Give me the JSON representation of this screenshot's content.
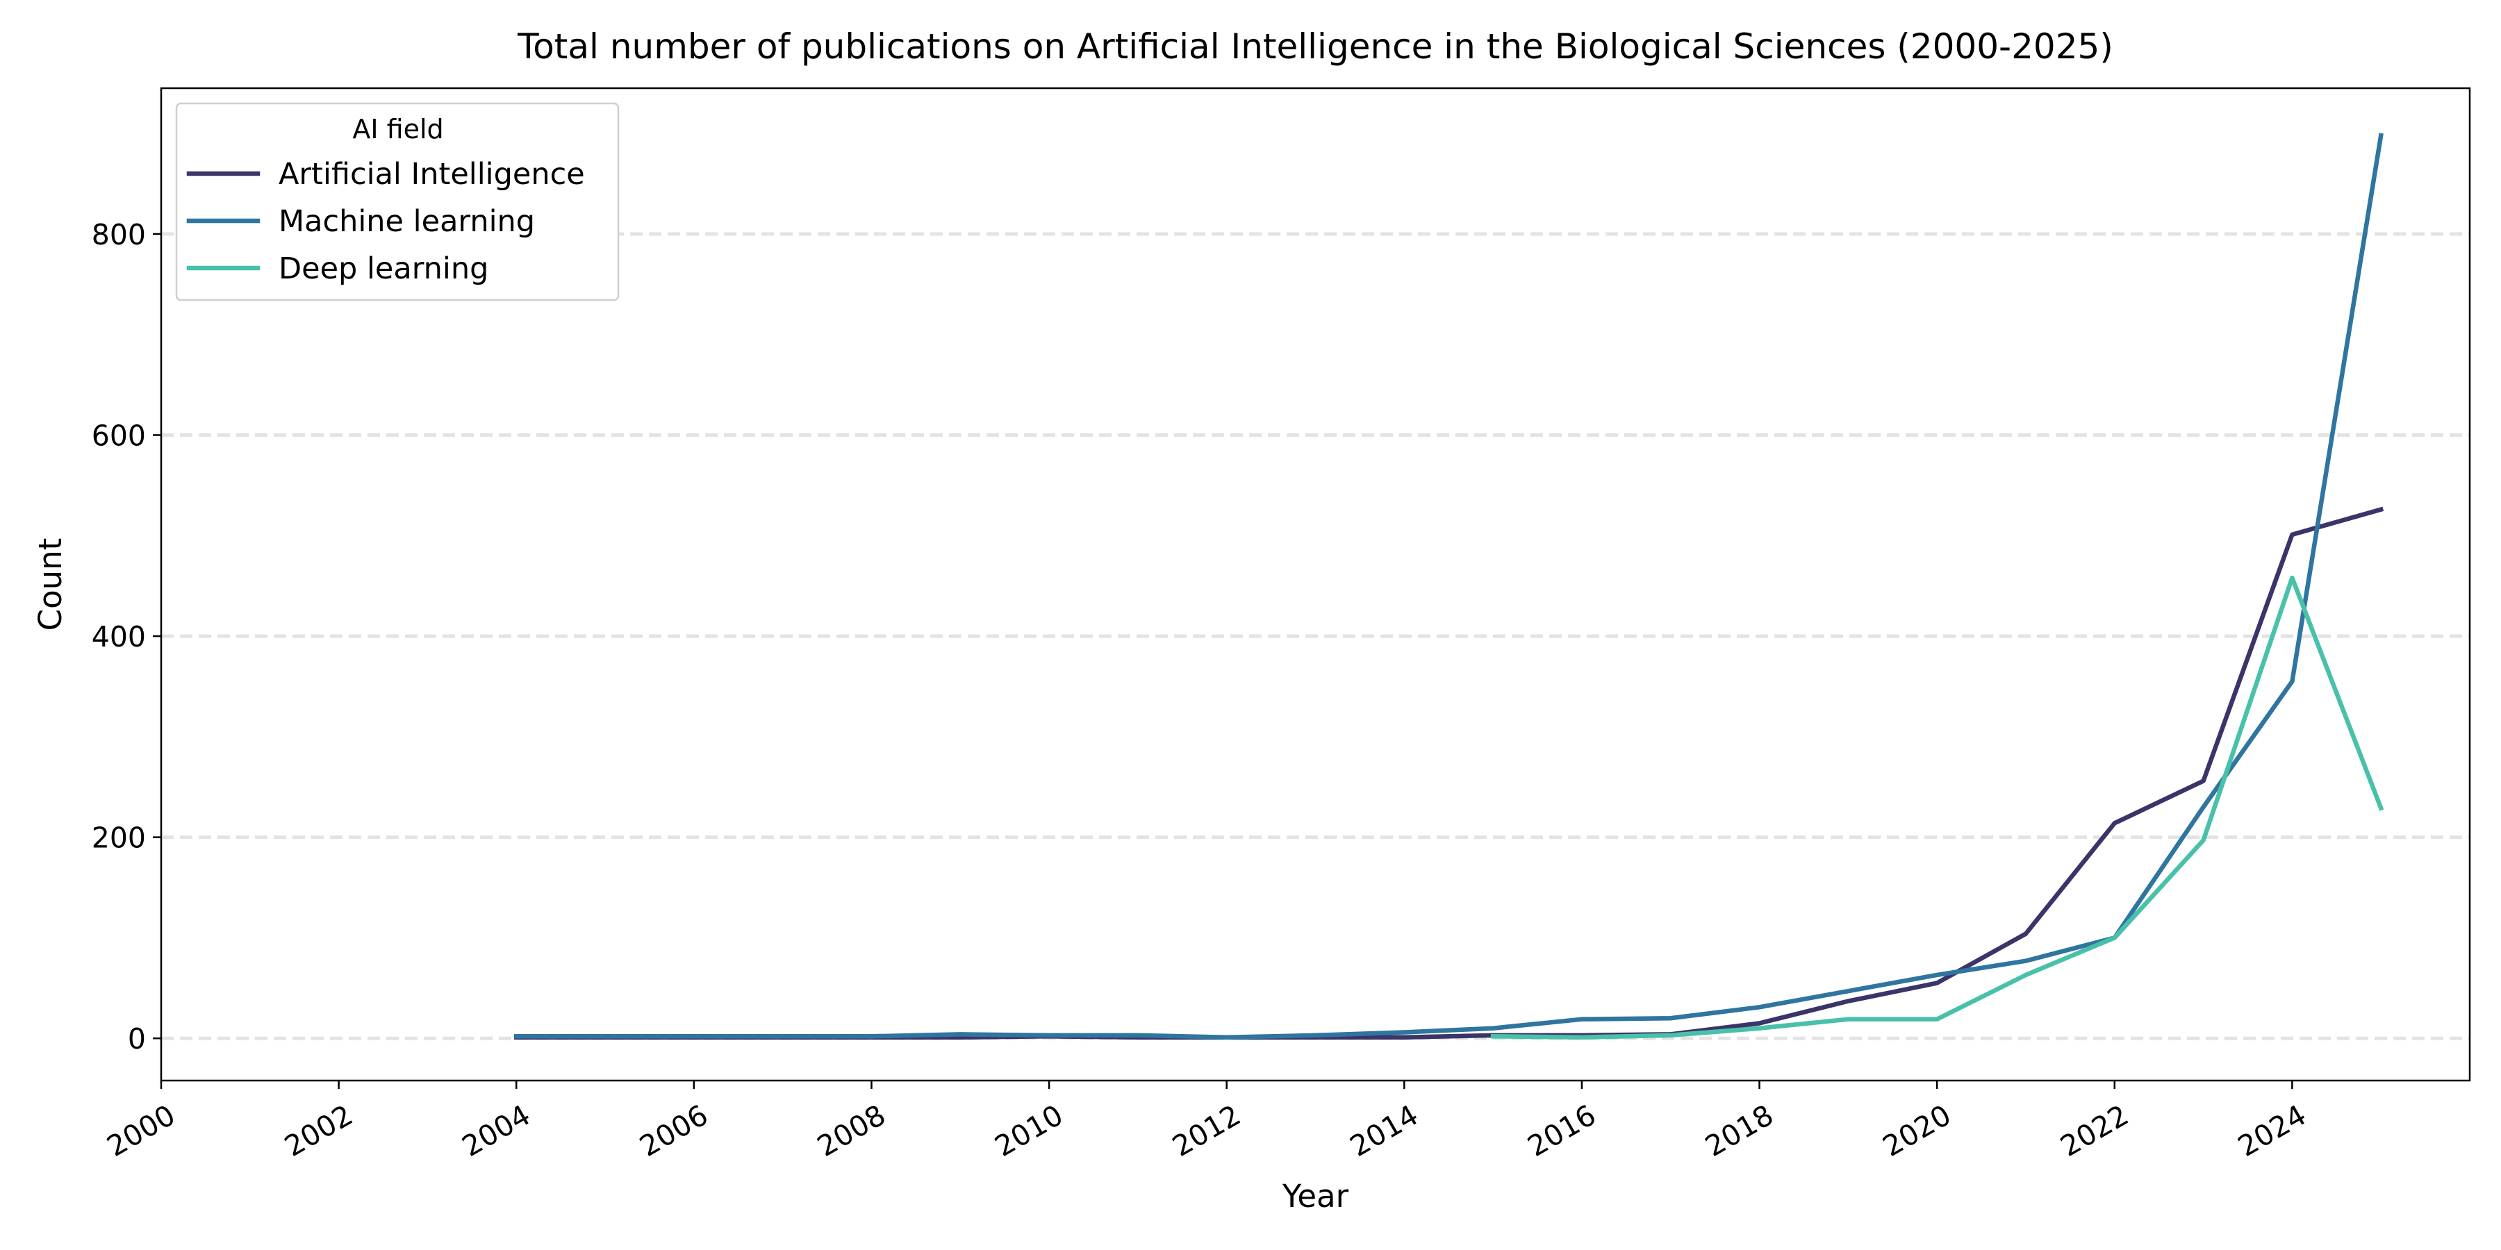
{
  "chart_data": {
    "type": "line",
    "title": "Total number of publications on Artificial Intelligence in the Biological Sciences (2000-2025)",
    "xlabel": "Year",
    "ylabel": "Count",
    "xlim": [
      2000,
      2026
    ],
    "ylim": [
      -42,
      945
    ],
    "x_ticks": [
      2000,
      2002,
      2004,
      2006,
      2008,
      2010,
      2012,
      2014,
      2016,
      2018,
      2020,
      2022,
      2024
    ],
    "y_ticks": [
      0,
      200,
      400,
      600,
      800
    ],
    "grid": "horizontal dashed",
    "legend": {
      "title": "AI field",
      "placement": "top-left"
    },
    "series": [
      {
        "name": "Artificial Intelligence",
        "color": "#3b3469",
        "x": [
          2004,
          2005,
          2006,
          2007,
          2008,
          2009,
          2010,
          2011,
          2012,
          2013,
          2014,
          2015,
          2016,
          2017,
          2018,
          2019,
          2020,
          2021,
          2022,
          2023,
          2024,
          2025
        ],
        "values": [
          1,
          1,
          1,
          1,
          1,
          1,
          2,
          1,
          1,
          1,
          1,
          3,
          3,
          4,
          15,
          37,
          55,
          104,
          214,
          256,
          501,
          526
        ]
      },
      {
        "name": "Machine learning",
        "color": "#2f75a0",
        "x": [
          2004,
          2005,
          2006,
          2007,
          2008,
          2009,
          2010,
          2011,
          2012,
          2013,
          2014,
          2015,
          2016,
          2017,
          2018,
          2019,
          2020,
          2021,
          2022,
          2023,
          2024,
          2025
        ],
        "values": [
          2,
          2,
          2,
          2,
          2,
          4,
          3,
          3,
          1,
          3,
          6,
          10,
          19,
          20,
          31,
          47,
          63,
          77,
          100,
          230,
          355,
          898
        ]
      },
      {
        "name": "Deep learning",
        "color": "#49c1aa",
        "x": [
          2015,
          2016,
          2017,
          2018,
          2019,
          2020,
          2021,
          2022,
          2023,
          2024,
          2025
        ],
        "values": [
          2,
          1,
          3,
          10,
          19,
          19,
          63,
          100,
          197,
          458,
          229
        ]
      }
    ]
  }
}
